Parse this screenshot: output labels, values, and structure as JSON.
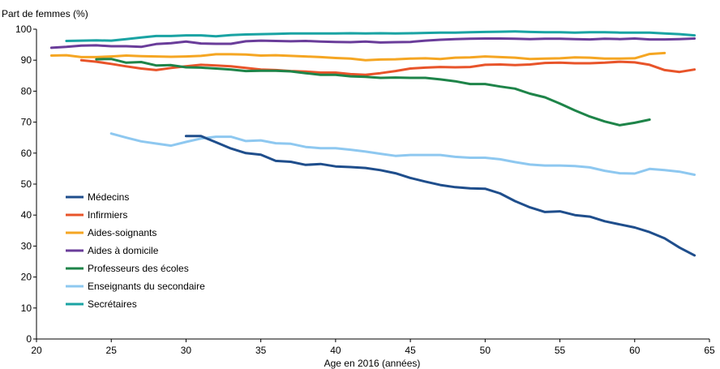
{
  "chart_data": {
    "type": "line",
    "title": "",
    "ylabel": "Part de femmes (%)",
    "xlabel": "Age en 2016 (années)",
    "xlim": [
      20,
      65
    ],
    "ylim": [
      0,
      100
    ],
    "xticks": [
      20,
      25,
      30,
      35,
      40,
      45,
      50,
      55,
      60,
      65
    ],
    "yticks": [
      0,
      10,
      20,
      30,
      40,
      50,
      60,
      70,
      80,
      90,
      100
    ],
    "grid": false,
    "legend_position": "left",
    "series": [
      {
        "name": "Médecins",
        "color": "#1f4e8c",
        "x": [
          30,
          31,
          32,
          33,
          34,
          35,
          36,
          37,
          38,
          39,
          40,
          41,
          42,
          43,
          44,
          45,
          46,
          47,
          48,
          49,
          50,
          51,
          52,
          53,
          54,
          55,
          56,
          57,
          58,
          59,
          60,
          61,
          62,
          63,
          64
        ],
        "y": [
          65.5,
          65.5,
          63.5,
          61.5,
          60,
          59.5,
          57.5,
          57.2,
          56.2,
          56.5,
          55.7,
          55.5,
          55.2,
          54.5,
          53.5,
          52,
          50.8,
          49.7,
          49,
          48.6,
          48.5,
          47,
          44.5,
          42.5,
          41,
          41.2,
          40,
          39.5,
          38,
          37,
          36,
          34.5,
          32.5,
          29.5,
          27
        ]
      },
      {
        "name": "Infirmiers",
        "color": "#e8542a",
        "x": [
          23,
          24,
          25,
          26,
          27,
          28,
          29,
          30,
          31,
          32,
          33,
          34,
          35,
          36,
          37,
          38,
          39,
          40,
          41,
          42,
          43,
          44,
          45,
          46,
          47,
          48,
          49,
          50,
          51,
          52,
          53,
          54,
          55,
          56,
          57,
          58,
          59,
          60,
          61,
          62,
          63,
          64
        ],
        "y": [
          90,
          89.5,
          88.8,
          88,
          87.3,
          86.8,
          87.5,
          88,
          88.5,
          88.3,
          88,
          87.5,
          87,
          86.8,
          86.5,
          86.3,
          86,
          86,
          85.5,
          85.3,
          85.8,
          86.5,
          87.3,
          87.6,
          87.8,
          87.7,
          87.8,
          88.5,
          88.6,
          88.4,
          88.6,
          89.1,
          89.2,
          89,
          89,
          89.2,
          89.5,
          89.3,
          88.5,
          86.8,
          86.2,
          87
        ]
      },
      {
        "name": "Aides-soignants",
        "color": "#f5a623",
        "x": [
          21,
          22,
          23,
          24,
          25,
          26,
          27,
          28,
          29,
          30,
          31,
          32,
          33,
          34,
          35,
          36,
          37,
          38,
          39,
          40,
          41,
          42,
          43,
          44,
          45,
          46,
          47,
          48,
          49,
          50,
          51,
          52,
          53,
          54,
          55,
          56,
          57,
          58,
          59,
          60,
          61,
          62
        ],
        "y": [
          91.5,
          91.6,
          91,
          91,
          91.2,
          91.5,
          91.3,
          91.2,
          91.1,
          91.2,
          91.4,
          91.9,
          91.9,
          91.8,
          91.5,
          91.6,
          91.4,
          91.2,
          91,
          90.7,
          90.5,
          90,
          90.2,
          90.3,
          90.5,
          90.6,
          90.4,
          90.8,
          90.9,
          91.2,
          91,
          90.8,
          90.4,
          90.5,
          90.6,
          90.9,
          90.8,
          90.5,
          90.5,
          90.6,
          92,
          92.3
        ]
      },
      {
        "name": "Aides à domicile",
        "color": "#6a3d9a",
        "x": [
          21,
          22,
          23,
          24,
          25,
          26,
          27,
          28,
          29,
          30,
          31,
          32,
          33,
          34,
          35,
          36,
          37,
          38,
          39,
          40,
          41,
          42,
          43,
          44,
          45,
          46,
          47,
          48,
          49,
          50,
          51,
          52,
          53,
          54,
          55,
          56,
          57,
          58,
          59,
          60,
          61,
          62,
          63,
          64
        ],
        "y": [
          94,
          94.3,
          94.7,
          94.8,
          94.5,
          94.5,
          94.3,
          95.2,
          95.5,
          96,
          95.4,
          95.3,
          95.3,
          96.1,
          96.3,
          96.2,
          96.1,
          96.2,
          96,
          95.9,
          95.8,
          96,
          95.7,
          95.8,
          95.9,
          96.3,
          96.6,
          96.8,
          96.9,
          97,
          97,
          96.9,
          96.8,
          96.9,
          96.9,
          96.8,
          96.7,
          96.9,
          96.8,
          97,
          96.7,
          96.7,
          96.8,
          97
        ]
      },
      {
        "name": "Professeurs des écoles",
        "color": "#1e8449",
        "x": [
          24,
          25,
          26,
          27,
          28,
          29,
          30,
          31,
          32,
          33,
          34,
          35,
          36,
          37,
          38,
          39,
          40,
          41,
          42,
          43,
          44,
          45,
          46,
          47,
          48,
          49,
          50,
          51,
          52,
          53,
          54,
          55,
          56,
          57,
          58,
          59,
          60,
          61
        ],
        "y": [
          90.3,
          90.4,
          89.2,
          89.4,
          88.3,
          88.4,
          87.7,
          87.6,
          87.3,
          87,
          86.5,
          86.6,
          86.6,
          86.4,
          85.8,
          85.3,
          85.3,
          84.8,
          84.6,
          84.3,
          84.4,
          84.3,
          84.3,
          83.8,
          83.2,
          82.3,
          82.3,
          81.5,
          80.8,
          79.2,
          78,
          76,
          73.8,
          71.8,
          70.2,
          69,
          69.8,
          70.8
        ]
      },
      {
        "name": "Enseignants du secondaire",
        "color": "#8ec8f0",
        "x": [
          25,
          26,
          27,
          28,
          29,
          30,
          31,
          32,
          33,
          34,
          35,
          36,
          37,
          38,
          39,
          40,
          41,
          42,
          43,
          44,
          45,
          46,
          47,
          48,
          49,
          50,
          51,
          52,
          53,
          54,
          55,
          56,
          57,
          58,
          59,
          60,
          61,
          62,
          63,
          64
        ],
        "y": [
          66.3,
          65,
          63.8,
          63.1,
          62.4,
          63.6,
          64.7,
          65.3,
          65.3,
          63.9,
          64.1,
          63.2,
          63,
          62,
          61.6,
          61.6,
          61.1,
          60.5,
          59.8,
          59.1,
          59.4,
          59.4,
          59.4,
          58.8,
          58.5,
          58.5,
          58,
          57.1,
          56.3,
          56,
          56,
          55.8,
          55.4,
          54.3,
          53.5,
          53.4,
          54.9,
          54.5,
          54,
          53
        ]
      },
      {
        "name": "Secrétaires",
        "color": "#1aa3a3",
        "x": [
          22,
          23,
          24,
          25,
          26,
          27,
          28,
          29,
          30,
          31,
          32,
          33,
          34,
          35,
          36,
          37,
          38,
          39,
          40,
          41,
          42,
          43,
          44,
          45,
          46,
          47,
          48,
          49,
          50,
          51,
          52,
          53,
          54,
          55,
          56,
          57,
          58,
          59,
          60,
          61,
          62,
          63,
          64
        ],
        "y": [
          96.2,
          96.3,
          96.4,
          96.3,
          96.8,
          97.3,
          97.8,
          97.8,
          98,
          98,
          97.7,
          98.1,
          98.3,
          98.4,
          98.5,
          98.6,
          98.6,
          98.6,
          98.6,
          98.7,
          98.6,
          98.7,
          98.6,
          98.7,
          98.8,
          98.9,
          98.9,
          99,
          99.1,
          99.2,
          99.3,
          99.1,
          99,
          99,
          98.9,
          99,
          99,
          98.9,
          98.9,
          98.9,
          98.6,
          98.4,
          98
        ]
      }
    ]
  }
}
